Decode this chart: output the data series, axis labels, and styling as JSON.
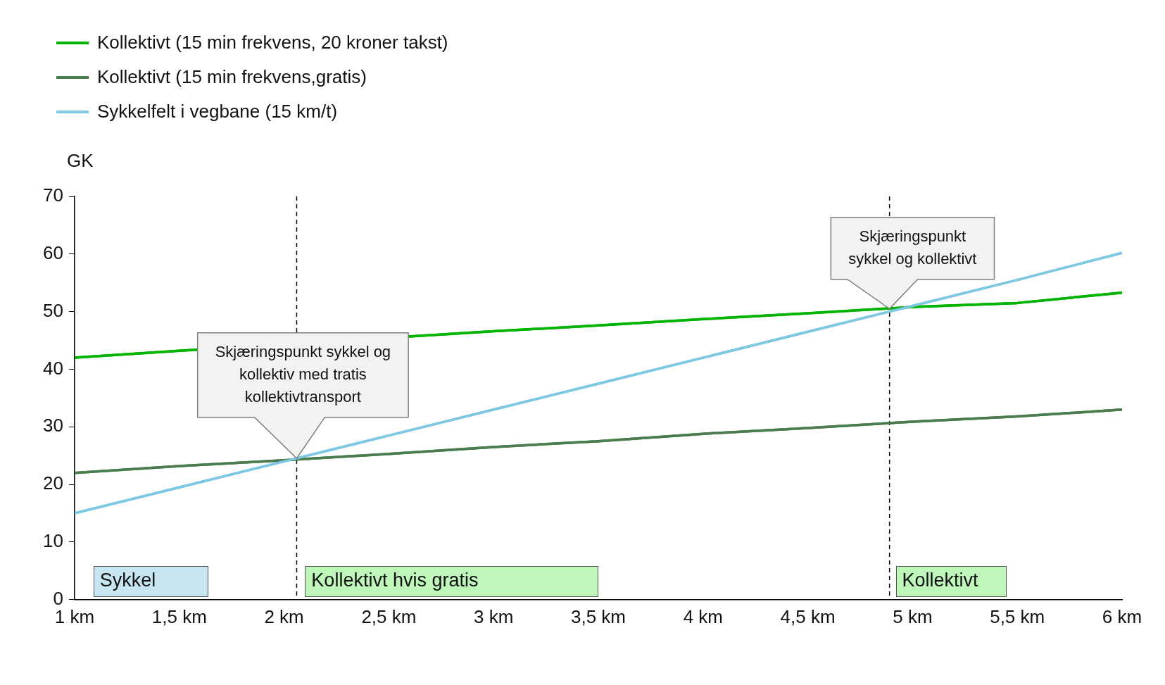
{
  "chart_data": {
    "type": "line",
    "ylabel": "GK",
    "x": [
      1,
      1.5,
      2,
      2.5,
      3,
      3.5,
      4,
      4.5,
      5,
      5.5,
      6
    ],
    "series": [
      {
        "name": "Kollektivt (15 min frekvens, 20 kroner takst)",
        "color": "#00b400",
        "values": [
          42.0,
          43.2,
          null,
          null,
          46.6,
          47.6,
          48.7,
          49.7,
          50.8,
          51.5,
          53.3
        ]
      },
      {
        "name": "Kollektivt (15 min frekvens,gratis)",
        "color": "#4a7c4e",
        "values": [
          22.0,
          23.2,
          24.2,
          25.3,
          26.5,
          27.5,
          28.8,
          29.8,
          30.9,
          31.8,
          33.0
        ]
      },
      {
        "name": "Sykkelfelt i vegbane (15 km/t)",
        "color": "#7ec8e3",
        "values": [
          15.0,
          19.5,
          24.0,
          28.5,
          33.0,
          37.5,
          42.0,
          46.5,
          51.0,
          55.5,
          60.2
        ]
      }
    ],
    "xlim": [
      1,
      6
    ],
    "xticks": [
      {
        "value": 1,
        "label": "1 km"
      },
      {
        "value": 1.5,
        "label": "1,5 km"
      },
      {
        "value": 2,
        "label": "2 km"
      },
      {
        "value": 2.5,
        "label": "2,5 km"
      },
      {
        "value": 3,
        "label": "3 km"
      },
      {
        "value": 3.5,
        "label": "3,5 km"
      },
      {
        "value": 4,
        "label": "4 km"
      },
      {
        "value": 4.5,
        "label": "4,5 km"
      },
      {
        "value": 5,
        "label": "5 km"
      },
      {
        "value": 5.5,
        "label": "5,5 km"
      },
      {
        "value": 6,
        "label": "6 km"
      }
    ],
    "ylim": [
      0,
      70
    ],
    "yticks": [
      0,
      10,
      20,
      30,
      40,
      50,
      60,
      70
    ],
    "ref_lines": [
      {
        "axis": "x",
        "value": 2.06,
        "label": null,
        "line_style": "dashed",
        "color": "#000000"
      },
      {
        "axis": "x",
        "value": 4.89,
        "label": null,
        "line_style": "dashed",
        "color": "#000000"
      }
    ],
    "annotations": [
      "Skjæringspunkt sykkel og kollektiv med tratis kollektivtransport",
      {
        "text": "Skjæringspunkt sykkel og kollektivt",
        "x": 4.89,
        "y": 50.5
      },
      "Sykkel",
      "Kollektivt hvis gratis",
      "Kollektivt"
    ],
    "legend": "top left",
    "grid": false,
    "marker": "none",
    "line_style": "solid"
  }
}
